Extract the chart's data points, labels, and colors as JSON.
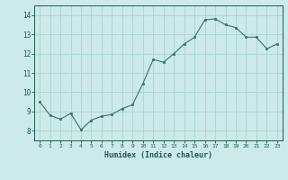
{
  "x": [
    0,
    1,
    2,
    3,
    4,
    5,
    6,
    7,
    8,
    9,
    10,
    11,
    12,
    13,
    14,
    15,
    16,
    17,
    18,
    19,
    20,
    21,
    22,
    23
  ],
  "y": [
    9.5,
    8.8,
    8.6,
    8.9,
    8.05,
    8.55,
    8.75,
    8.85,
    9.15,
    9.35,
    10.45,
    11.7,
    11.55,
    12.0,
    12.5,
    12.85,
    13.75,
    13.8,
    13.5,
    13.35,
    12.85,
    12.85,
    12.25,
    12.5
  ],
  "xlabel": "Humidex (Indice chaleur)",
  "xlim": [
    -0.5,
    23.5
  ],
  "ylim": [
    7.5,
    14.5
  ],
  "yticks": [
    8,
    9,
    10,
    11,
    12,
    13,
    14
  ],
  "xticks": [
    0,
    1,
    2,
    3,
    4,
    5,
    6,
    7,
    8,
    9,
    10,
    11,
    12,
    13,
    14,
    15,
    16,
    17,
    18,
    19,
    20,
    21,
    22,
    23
  ],
  "line_color": "#2d7a6a",
  "marker_color": "#2d7a6a",
  "bg_color": "#cceae8",
  "grid_color": "#aad4d0",
  "xlabel_color": "#1a5a5a",
  "tick_color": "#1a5a5a",
  "axis_color": "#1a5a5a"
}
